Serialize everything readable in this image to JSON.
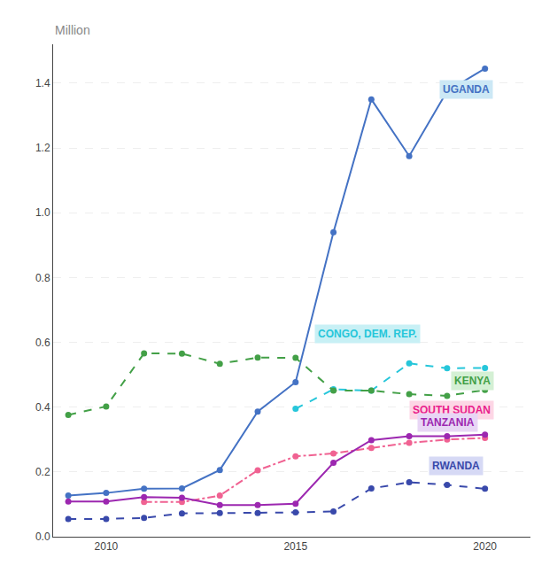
{
  "chart_data": {
    "type": "line",
    "ylabel": "Million",
    "series": [
      {
        "name": "UGANDA",
        "color": "#4472C4",
        "line_style": "solid",
        "marker": "circle",
        "x": [
          2009,
          2010,
          2011,
          2012,
          2013,
          2014,
          2015,
          2016,
          2017,
          2018,
          2019,
          2020
        ],
        "values": [
          0.127,
          0.135,
          0.148,
          0.149,
          0.206,
          0.386,
          0.477,
          0.94,
          1.35,
          1.175,
          1.375,
          1.445
        ]
      },
      {
        "name": "CONGO, DEM. REP.",
        "color": "#26C6DA",
        "line_style": "dashed",
        "marker": "circle",
        "x": [
          2015,
          2016,
          2017,
          2018,
          2019,
          2020
        ],
        "values": [
          0.395,
          0.455,
          0.451,
          0.535,
          0.52,
          0.521
        ]
      },
      {
        "name": "KENYA",
        "color": "#43A047",
        "line_style": "dashed",
        "marker": "circle",
        "x": [
          2009,
          2010,
          2011,
          2012,
          2013,
          2014,
          2015,
          2016,
          2017,
          2018,
          2019,
          2020
        ],
        "values": [
          0.376,
          0.402,
          0.566,
          0.565,
          0.534,
          0.553,
          0.552,
          0.451,
          0.451,
          0.44,
          0.435,
          0.453
        ]
      },
      {
        "name": "SOUTH SUDAN",
        "color": "#F06292",
        "line_style": "dashdot",
        "marker": "circle",
        "x": [
          2011,
          2012,
          2013,
          2014,
          2015,
          2016,
          2017,
          2018,
          2019,
          2020
        ],
        "values": [
          0.107,
          0.107,
          0.127,
          0.205,
          0.248,
          0.257,
          0.274,
          0.29,
          0.3,
          0.305
        ]
      },
      {
        "name": "TANZANIA",
        "color": "#9C27B0",
        "line_style": "solid",
        "marker": "circle",
        "x": [
          2009,
          2010,
          2011,
          2012,
          2013,
          2014,
          2015,
          2016,
          2017,
          2018,
          2019,
          2020
        ],
        "values": [
          0.109,
          0.109,
          0.122,
          0.12,
          0.098,
          0.098,
          0.102,
          0.228,
          0.298,
          0.31,
          0.31,
          0.315
        ]
      },
      {
        "name": "RWANDA",
        "color": "#3949AB",
        "line_style": "dashed",
        "marker": "circle",
        "x": [
          2009,
          2010,
          2011,
          2012,
          2013,
          2014,
          2015,
          2016,
          2017,
          2018,
          2019,
          2020
        ],
        "values": [
          0.055,
          0.055,
          0.058,
          0.072,
          0.073,
          0.073,
          0.075,
          0.078,
          0.149,
          0.168,
          0.16,
          0.148
        ]
      }
    ],
    "annotations": [
      {
        "text": "UGANDA",
        "x": 2018.8,
        "y": 1.38,
        "color": "#4472C4",
        "background": "#cce8f5"
      },
      {
        "text": "CONGO, DEM. REP.",
        "x": 2015.5,
        "y": 0.625,
        "color": "#26C6DA",
        "background": "#c8f0f5"
      },
      {
        "text": "KENYA",
        "x": 2019.1,
        "y": 0.48,
        "color": "#43A047",
        "background": "#d4f0d4"
      },
      {
        "text": "SOUTH SUDAN",
        "x": 2018.0,
        "y": 0.39,
        "color": "#E91E8C",
        "background": "#fdd6e5"
      },
      {
        "text": "TANZANIA",
        "x": 2018.2,
        "y": 0.352,
        "color": "#9C27B0",
        "background": "#e8d6f5"
      },
      {
        "text": "RWANDA",
        "x": 2018.5,
        "y": 0.22,
        "color": "#3949AB",
        "background": "#d6d9f5"
      }
    ],
    "xlim": [
      2008.6,
      2021.2
    ],
    "xticks": [
      2010,
      2015,
      2020
    ],
    "ylim": [
      0.0,
      1.52
    ],
    "yticks": [
      {
        "value": 0.0,
        "label": "0.0"
      },
      0.2,
      0.4,
      0.6,
      0.8,
      {
        "value": 1.0,
        "label": "1.0"
      },
      1.2,
      1.4
    ],
    "grid": "y"
  }
}
